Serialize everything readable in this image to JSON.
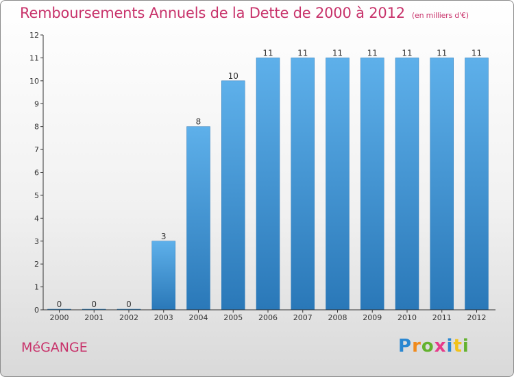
{
  "header": {
    "title": "Remboursements Annuels de la Dette de 2000 à 2012",
    "unit": "(en milliers d'€)"
  },
  "footer": {
    "commune": "MéGANGE",
    "logo": [
      "P",
      "r",
      "o",
      "x",
      "i",
      "t",
      "i"
    ]
  },
  "colors": {
    "title": "#c8336b",
    "bar_top": "#5eb0ea",
    "bar_bottom": "#2a78b8",
    "axis": "#333333"
  },
  "chart_data": {
    "type": "bar",
    "title": "Remboursements Annuels de la Dette de 2000 à 2012",
    "xlabel": "",
    "ylabel": "",
    "categories": [
      "2000",
      "2001",
      "2002",
      "2003",
      "2004",
      "2005",
      "2006",
      "2007",
      "2008",
      "2009",
      "2010",
      "2011",
      "2012"
    ],
    "values": [
      0,
      0,
      0,
      3,
      8,
      10,
      11,
      11,
      11,
      11,
      11,
      11,
      11
    ],
    "yticks": [
      0,
      1,
      2,
      3,
      4,
      5,
      6,
      7,
      8,
      9,
      10,
      11,
      12
    ],
    "ylim": [
      0,
      12
    ],
    "grid": false,
    "data_labels": true
  }
}
